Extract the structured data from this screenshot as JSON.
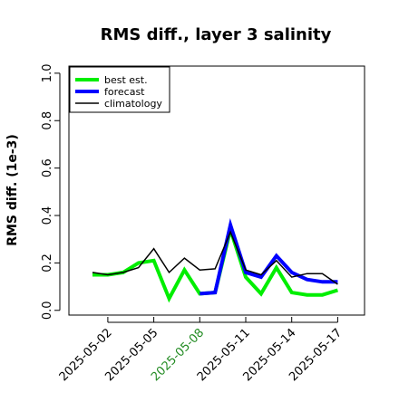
{
  "chart_data": {
    "type": "line",
    "title": "RMS diff., layer 3 salinity",
    "ylabel": "RMS diff. (1e-3)",
    "xlabel": "",
    "ylim": [
      -0.02,
      1.03
    ],
    "yticks": [
      0.0,
      0.2,
      0.4,
      0.6,
      0.8,
      1.0
    ],
    "ytick_labels": [
      "0.0",
      "0.2",
      "0.4",
      "0.6",
      "0.8",
      "1.0"
    ],
    "x": [
      "2025-05-01",
      "2025-05-02",
      "2025-05-03",
      "2025-05-04",
      "2025-05-05",
      "2025-05-06",
      "2025-05-07",
      "2025-05-08",
      "2025-05-09",
      "2025-05-10",
      "2025-05-11",
      "2025-05-12",
      "2025-05-13",
      "2025-05-14",
      "2025-05-15",
      "2025-05-16",
      "2025-05-17"
    ],
    "xticks": [
      "2025-05-02",
      "2025-05-05",
      "2025-05-08",
      "2025-05-11",
      "2025-05-14",
      "2025-05-17"
    ],
    "highlight_tick": "2025-05-08",
    "highlight_color": "#228b22",
    "legend_position": "top-left",
    "grid": false,
    "series": [
      {
        "name": "best est.",
        "color": "#00ee00",
        "values": [
          0.15,
          0.15,
          0.16,
          0.2,
          0.21,
          0.05,
          0.17,
          0.07,
          0.075,
          0.34,
          0.14,
          0.07,
          0.18,
          0.075,
          0.065,
          0.065,
          0.085
        ]
      },
      {
        "name": "forecast",
        "color": "#0000ff",
        "values": [
          null,
          null,
          null,
          null,
          null,
          null,
          null,
          0.07,
          0.075,
          0.36,
          0.16,
          0.14,
          0.23,
          0.16,
          0.13,
          0.12,
          0.12
        ]
      },
      {
        "name": "climatology",
        "color": "#000000",
        "values": [
          0.16,
          0.15,
          0.16,
          0.18,
          0.26,
          0.16,
          0.22,
          0.17,
          0.175,
          0.33,
          0.17,
          0.15,
          0.21,
          0.14,
          0.155,
          0.155,
          0.11
        ]
      }
    ]
  }
}
